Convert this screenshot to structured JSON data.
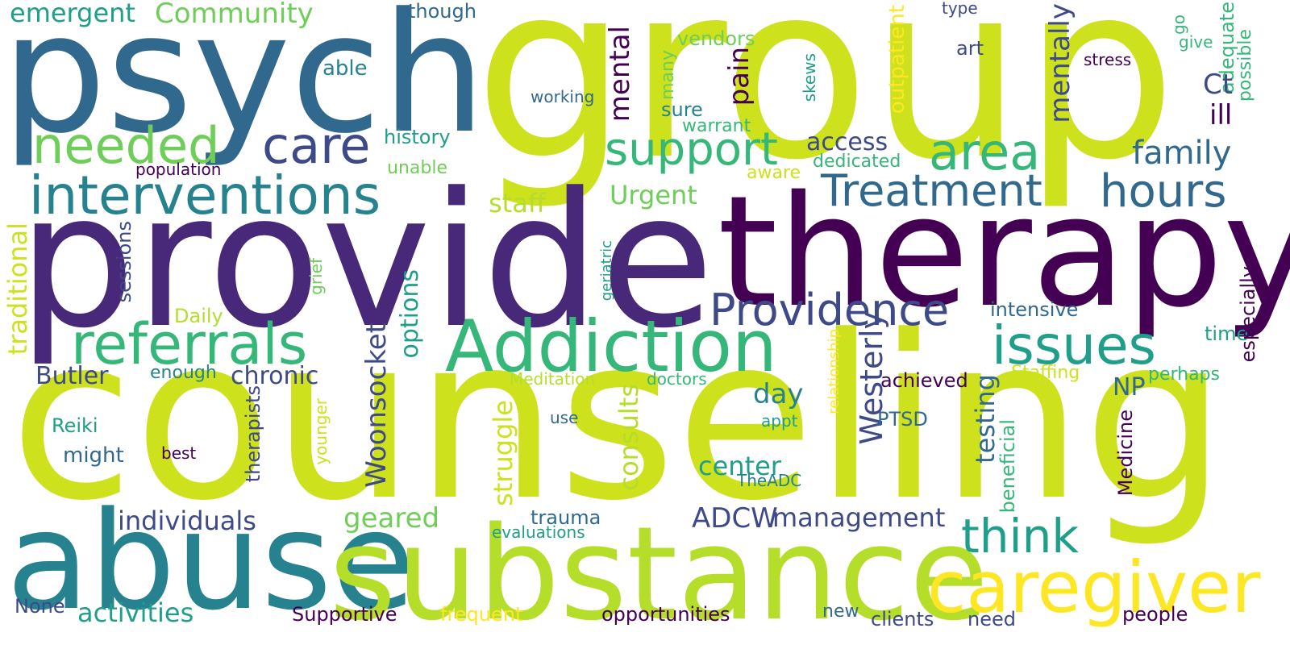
{
  "palette": {
    "dark_purple": "#440154",
    "purple": "#482878",
    "indigo": "#3e4989",
    "blue": "#31688e",
    "teal": "#26828e",
    "green_teal": "#1f9e89",
    "green": "#35b779",
    "light_green": "#6ece58",
    "lime": "#b5de2b",
    "yellow_green": "#cde11d",
    "yellow": "#fde725"
  },
  "words": {
    "group": "group",
    "psych": "psych",
    "provide": "provide",
    "therapy": "therapy",
    "counseling": "counseling",
    "abuse": "abuse",
    "substance": "substance",
    "caregiver": "caregiver",
    "interventions": "interventions",
    "referrals": "referrals",
    "addiction": "Addiction",
    "providence": "Providence",
    "treatment": "Treatment",
    "issues": "issues",
    "needed": "needed",
    "care": "care",
    "support": "support",
    "area": "area",
    "hours": "hours",
    "family": "family",
    "think": "think",
    "community": "Community",
    "emergent": "emergent",
    "though": "though",
    "type": "type",
    "go": "go",
    "give": "give",
    "stress": "stress",
    "art": "art",
    "able": "able",
    "vendors": "vendors",
    "many": "many",
    "skews": "skews",
    "outpatient": "outpatient",
    "adequate": "adequate",
    "possible": "possible",
    "working": "working",
    "sure": "sure",
    "mental": "mental",
    "pain": "pain",
    "mentally": "mentally",
    "ct": "Ct",
    "ill": "ill",
    "history": "history",
    "warrant": "warrant",
    "access": "access",
    "dedicated": "dedicated",
    "population": "population",
    "unable": "unable",
    "aware": "aware",
    "staff": "staff",
    "urgent": "Urgent",
    "traditional": "traditional",
    "sessions": "sessions",
    "grief": "grief",
    "daily": "Daily",
    "geriatric": "geriatric",
    "intensive": "intensive",
    "time": "time",
    "especially": "especially",
    "westerly": "Westerly",
    "relationship": "relationship",
    "options": "options",
    "butler": "Butler",
    "enough": "enough",
    "chronic": "chronic",
    "woonsocket": "Woonsocket",
    "meditation": "Meditation",
    "doctors": "doctors",
    "day": "day",
    "achieved": "achieved",
    "testing": "testing",
    "staffing": "Staffing",
    "perhaps": "perhaps",
    "np": "NP",
    "reiki": "Reiki",
    "therapists": "therapists",
    "use": "use",
    "appt": "appt",
    "ptsd": "PTSD",
    "beneficial": "beneficial",
    "medicine": "Medicine",
    "might": "might",
    "best": "best",
    "younger": "younger",
    "struggle": "struggle",
    "consults": "consults",
    "center": "center",
    "the_adc": "TheADC",
    "individuals": "individuals",
    "geared": "geared",
    "trauma": "trauma",
    "adcw": "ADCW",
    "management": "management",
    "evaluations": "evaluations",
    "activities": "activities",
    "none": "None",
    "supportive": "Supportive",
    "frequent": "frequent",
    "opportunities": "opportunities",
    "new": "new",
    "clients": "clients",
    "need": "need",
    "people": "people"
  }
}
